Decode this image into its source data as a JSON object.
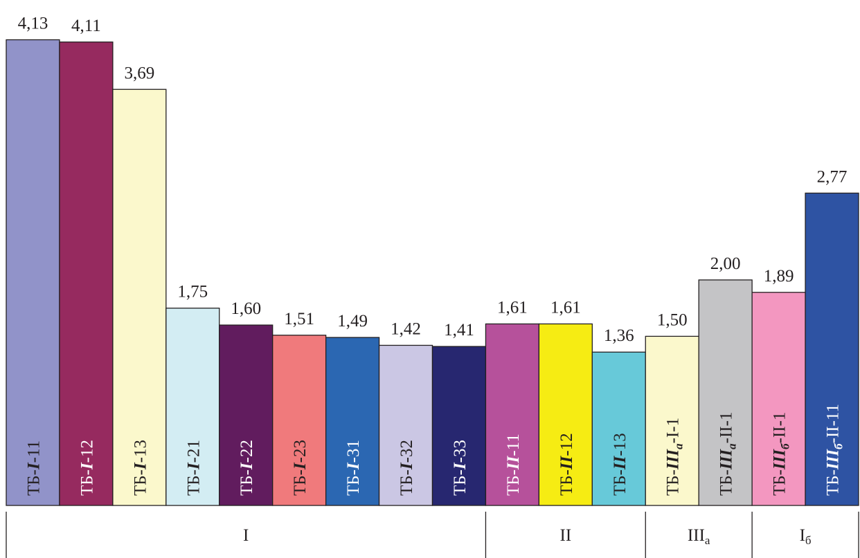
{
  "chart_data": {
    "type": "bar",
    "categories": [
      {
        "label": [
          {
            "t": "ТБ-"
          },
          {
            "t": "I",
            "it": true
          },
          {
            "t": "-11"
          }
        ],
        "color": "#9193c9",
        "text_color": "#231f20"
      },
      {
        "label": [
          {
            "t": "ТБ-"
          },
          {
            "t": "I",
            "it": true
          },
          {
            "t": "-12"
          }
        ],
        "color": "#962a5f",
        "text_color": "#ffffff"
      },
      {
        "label": [
          {
            "t": "ТБ-"
          },
          {
            "t": "I",
            "it": true
          },
          {
            "t": "-13"
          }
        ],
        "color": "#fbf8cc",
        "text_color": "#231f20"
      },
      {
        "label": [
          {
            "t": "ТБ-"
          },
          {
            "t": "I",
            "it": true
          },
          {
            "t": "-21"
          }
        ],
        "color": "#d3edf3",
        "text_color": "#231f20"
      },
      {
        "label": [
          {
            "t": "ТБ-"
          },
          {
            "t": "I",
            "it": true
          },
          {
            "t": "-22"
          }
        ],
        "color": "#611c5e",
        "text_color": "#ffffff"
      },
      {
        "label": [
          {
            "t": "ТБ-"
          },
          {
            "t": "I",
            "it": true
          },
          {
            "t": "-23"
          }
        ],
        "color": "#f07a7c",
        "text_color": "#231f20"
      },
      {
        "label": [
          {
            "t": "ТБ-"
          },
          {
            "t": "I",
            "it": true
          },
          {
            "t": "-31"
          }
        ],
        "color": "#2b67b2",
        "text_color": "#ffffff"
      },
      {
        "label": [
          {
            "t": "ТБ-"
          },
          {
            "t": "I",
            "it": true
          },
          {
            "t": "-32"
          }
        ],
        "color": "#cbc7e4",
        "text_color": "#231f20"
      },
      {
        "label": [
          {
            "t": "ТБ-"
          },
          {
            "t": "I",
            "it": true
          },
          {
            "t": "-33"
          }
        ],
        "color": "#272770",
        "text_color": "#ffffff"
      },
      {
        "label": [
          {
            "t": "ТБ-"
          },
          {
            "t": "II",
            "it": true
          },
          {
            "t": "-11"
          }
        ],
        "color": "#b6519b",
        "text_color": "#ffffff"
      },
      {
        "label": [
          {
            "t": "ТБ-"
          },
          {
            "t": "II",
            "it": true
          },
          {
            "t": "-12"
          }
        ],
        "color": "#f6ec13",
        "text_color": "#231f20"
      },
      {
        "label": [
          {
            "t": "ТБ-"
          },
          {
            "t": "II",
            "it": true
          },
          {
            "t": "-13"
          }
        ],
        "color": "#67c9d9",
        "text_color": "#231f20"
      },
      {
        "label": [
          {
            "t": "ТБ-"
          },
          {
            "t": "III",
            "it": true
          },
          {
            "t": "а",
            "it": true,
            "sub": true
          },
          {
            "t": "-I-1"
          }
        ],
        "color": "#fbf8cc",
        "text_color": "#231f20"
      },
      {
        "label": [
          {
            "t": "ТБ-"
          },
          {
            "t": "III",
            "it": true
          },
          {
            "t": "а",
            "it": true,
            "sub": true
          },
          {
            "t": "-II-1"
          }
        ],
        "color": "#c4c4c6",
        "text_color": "#231f20"
      },
      {
        "label": [
          {
            "t": "ТБ-"
          },
          {
            "t": "III",
            "it": true
          },
          {
            "t": "б",
            "it": true,
            "sub": true
          },
          {
            "t": "-II-1"
          }
        ],
        "color": "#f397c0",
        "text_color": "#231f20"
      },
      {
        "label": [
          {
            "t": "ТБ-"
          },
          {
            "t": "III",
            "it": true
          },
          {
            "t": "б",
            "it": true,
            "sub": true
          },
          {
            "t": "-II-11"
          }
        ],
        "color": "#2e53a3",
        "text_color": "#ffffff"
      }
    ],
    "values": [
      4.13,
      4.11,
      3.69,
      1.75,
      1.6,
      1.51,
      1.49,
      1.42,
      1.41,
      1.61,
      1.61,
      1.36,
      1.5,
      2.0,
      1.89,
      2.77
    ],
    "value_labels": [
      "4,13",
      "4,11",
      "3,69",
      "1,75",
      "1,60",
      "1,51",
      "1,49",
      "1,42",
      "1,41",
      "1,61",
      "1,61",
      "1,36",
      "1,50",
      "2,00",
      "1,89",
      "2,77"
    ],
    "groups": [
      {
        "label": "I",
        "sub": "",
        "start": 0,
        "end": 8
      },
      {
        "label": "II",
        "sub": "",
        "start": 9,
        "end": 11
      },
      {
        "label": "III",
        "sub": "а",
        "start": 12,
        "end": 13
      },
      {
        "label": "I",
        "sub": "б",
        "start": 14,
        "end": 15
      }
    ],
    "ylim": [
      0,
      4.13
    ],
    "grid": false,
    "legend": "none",
    "stroke_color": "#231f20"
  }
}
